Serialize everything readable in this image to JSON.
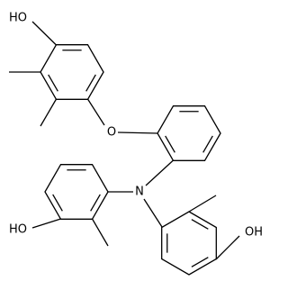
{
  "labels": {
    "top_hydroxyl": "HO",
    "ether_oxygen": "O",
    "amine_nitrogen": "N",
    "left_hydroxyl": "HO",
    "right_hydroxyl": "OH"
  }
}
